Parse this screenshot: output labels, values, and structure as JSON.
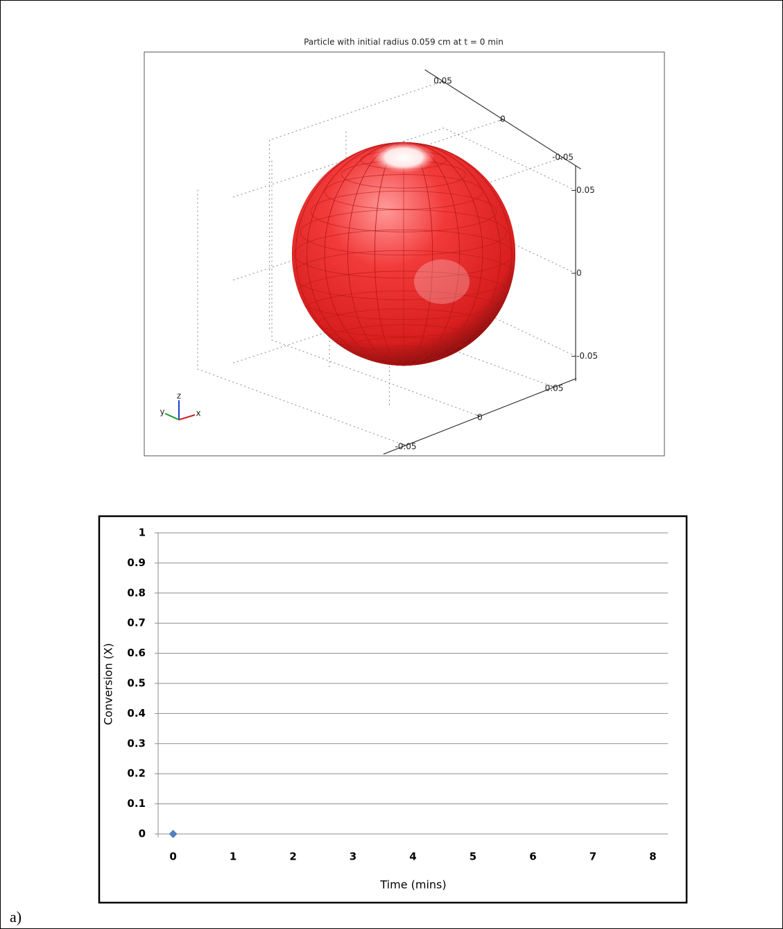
{
  "chart_data": [
    {
      "type": "sphere3d",
      "title": "Particle with initial radius 0.059 cm at t =  0 min",
      "radius": 0.059,
      "color": "#e8282a",
      "xlim": [
        -0.065,
        0.065
      ],
      "ylim": [
        -0.065,
        0.065
      ],
      "zlim": [
        -0.065,
        0.065
      ],
      "xticks": [
        -0.05,
        0,
        0.05
      ],
      "yticks": [
        -0.05,
        0,
        0.05
      ],
      "zticks": [
        -0.05,
        0,
        0.05
      ],
      "axis_labels": {
        "x": "x",
        "y": "y",
        "z": "z"
      }
    },
    {
      "type": "scatter",
      "x_label": "Time (mins)",
      "y_label": "Conversion (X)",
      "x": [
        0
      ],
      "values": [
        0
      ],
      "color": "#4f81bd",
      "xlim": [
        -0.25,
        8.25
      ],
      "xticks": [
        0,
        1,
        2,
        3,
        4,
        5,
        6,
        7,
        8
      ],
      "ylim": [
        0,
        1
      ],
      "yticks": [
        0,
        0.1,
        0.2,
        0.3,
        0.4,
        0.5,
        0.6,
        0.7,
        0.8,
        0.9,
        1
      ],
      "grid": true
    }
  ],
  "caption": "a)"
}
